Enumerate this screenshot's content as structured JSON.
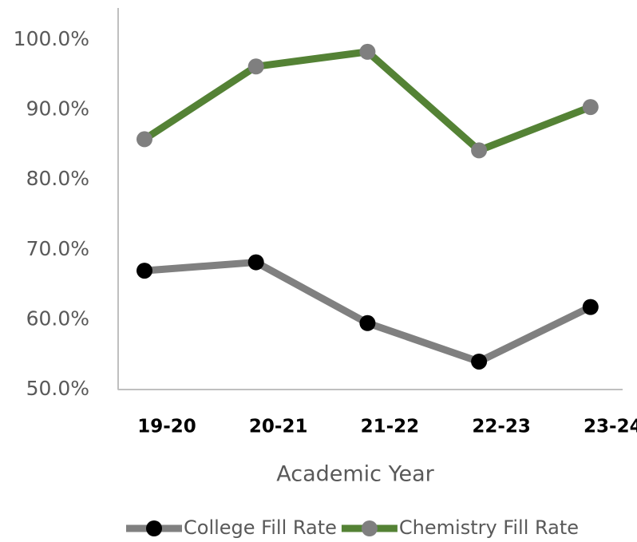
{
  "chart_data": {
    "type": "line",
    "x_label": "Academic Year",
    "categories": [
      "19-20",
      "20-21",
      "21-22",
      "22-23",
      "23-24"
    ],
    "series": [
      {
        "name": "College Fill Rate",
        "color": "#808080",
        "marker_color": "#000000",
        "values": [
          67.0,
          68.2,
          59.5,
          54.0,
          61.8
        ]
      },
      {
        "name": "Chemistry Fill Rate",
        "color": "#548235",
        "marker_color": "#7f7f7f",
        "values": [
          85.8,
          96.2,
          98.3,
          84.2,
          90.4
        ]
      }
    ],
    "ylim": [
      50,
      100
    ],
    "yticks": [
      {
        "value": 50,
        "label": "50.0%"
      },
      {
        "value": 60,
        "label": "60.0%"
      },
      {
        "value": 70,
        "label": "70.0%"
      },
      {
        "value": 80,
        "label": "80.0%"
      },
      {
        "value": 90,
        "label": "90.0%"
      },
      {
        "value": 100,
        "label": "100.0%"
      }
    ],
    "legend": "bottom",
    "grid": false
  }
}
